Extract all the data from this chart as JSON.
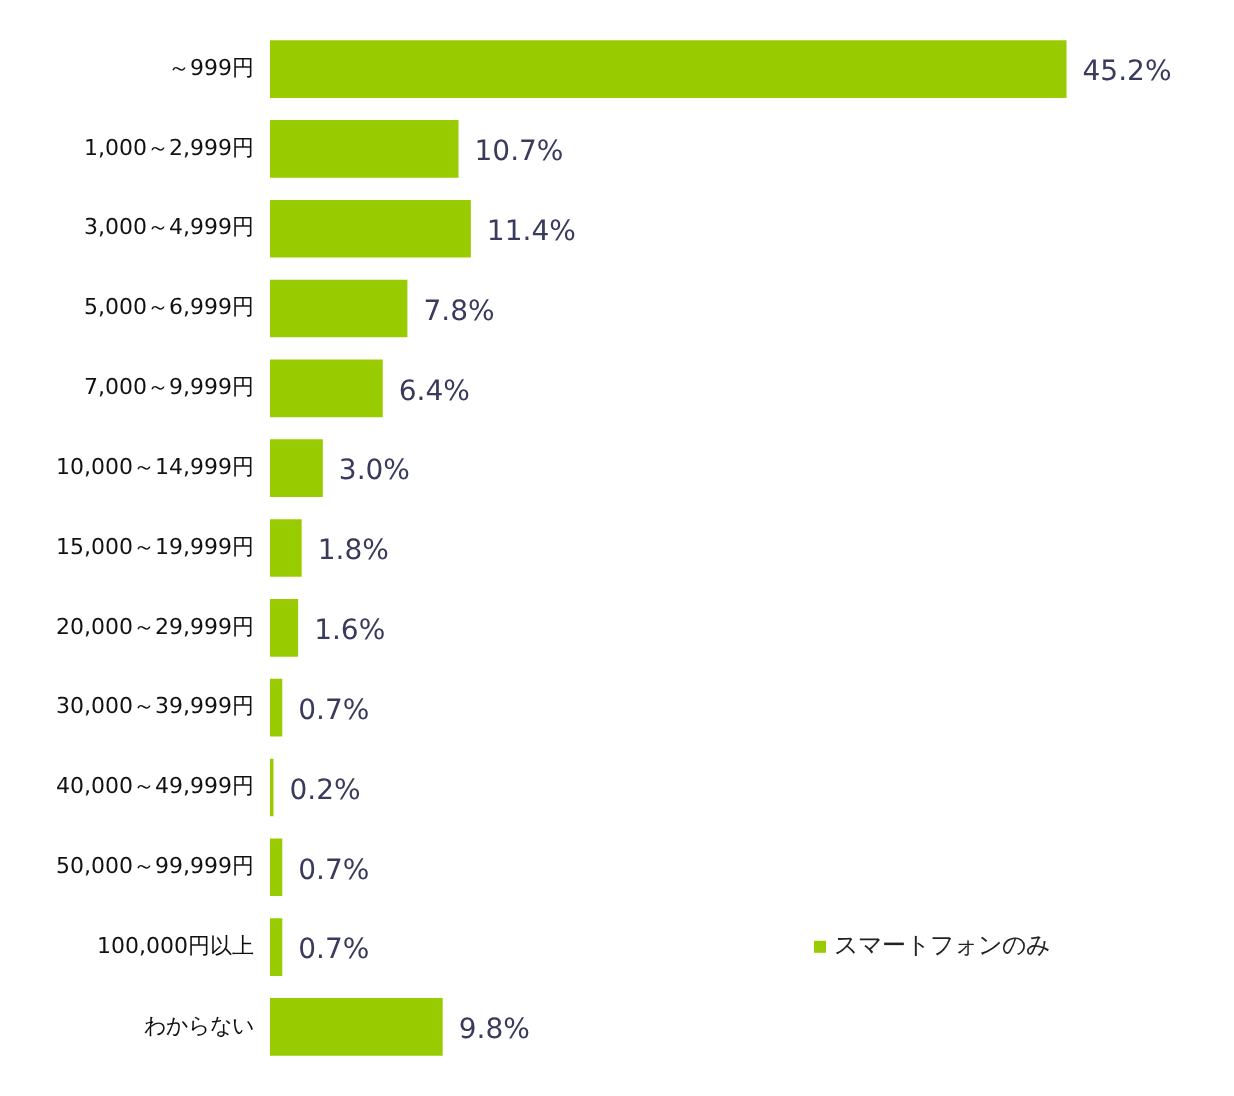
{
  "chart_data": {
    "type": "bar",
    "orientation": "horizontal",
    "categories": [
      "～999円",
      "1,000～2,999円",
      "3,000～4,999円",
      "5,000～6,999円",
      "7,000～9,999円",
      "10,000～14,999円",
      "15,000～19,999円",
      "20,000～29,999円",
      "30,000～39,999円",
      "40,000～49,999円",
      "50,000～99,999円",
      "100,000円以上",
      "わからない"
    ],
    "series": [
      {
        "name": "スマートフォンのみ",
        "color": "#99cc00",
        "values": [
          45.2,
          10.7,
          11.4,
          7.8,
          6.4,
          3.0,
          1.8,
          1.6,
          0.7,
          0.2,
          0.7,
          0.7,
          9.8
        ],
        "value_labels": [
          "45.2%",
          "10.7%",
          "11.4%",
          "7.8%",
          "6.4%",
          "3.0%",
          "1.8%",
          "1.6%",
          "0.7%",
          "0.2%",
          "0.7%",
          "0.7%",
          "9.8%"
        ]
      }
    ],
    "legend": "bottom right",
    "grid": false
  }
}
